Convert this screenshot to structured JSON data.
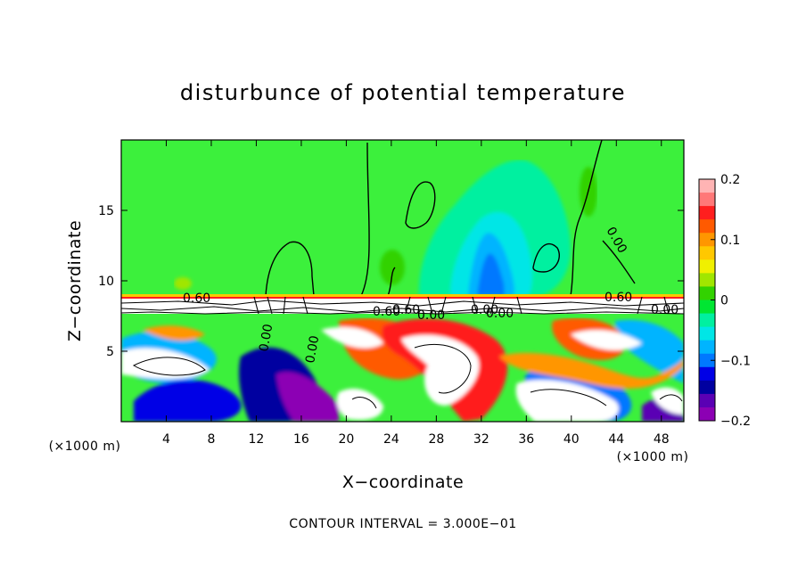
{
  "chart_data": {
    "type": "heatmap",
    "title": "disturbunce of potential temperature",
    "xlabel": "X−coordinate",
    "ylabel": "Z−coordinate",
    "x_unit": "(×1000 m)",
    "z_unit": "(×1000 m)",
    "xlim": [
      0,
      50
    ],
    "ylim": [
      0,
      20
    ],
    "x_ticks": [
      4,
      8,
      12,
      16,
      20,
      24,
      28,
      32,
      36,
      40,
      44,
      48
    ],
    "y_ticks": [
      5,
      10,
      15
    ],
    "contour_interval": "CONTOUR INTERVAL = 3.000E−01",
    "contour_labels": [
      "0.60",
      "0.00",
      "0.00",
      "0.60",
      "0.60",
      "0.00",
      "0.00",
      "0.00",
      "0.60",
      "0.00",
      "0.00"
    ],
    "colorbar": {
      "min": -0.2,
      "max": 0.2,
      "ticks": [
        {
          "value": 0.2,
          "label": "0.2"
        },
        {
          "value": 0.1,
          "label": "0.1"
        },
        {
          "value": 0.0,
          "label": "0"
        },
        {
          "value": -0.1,
          "label": "−0.1"
        },
        {
          "value": -0.2,
          "label": "−0.2"
        }
      ],
      "colors_top_to_bottom": [
        "#ffb4b4",
        "#ff7878",
        "#ff1e1e",
        "#ff5a00",
        "#ff9600",
        "#ffc800",
        "#f0f000",
        "#a0e600",
        "#32d200",
        "#00e632",
        "#00f0a0",
        "#00e6e6",
        "#00b4ff",
        "#0078ff",
        "#0000e6",
        "#0000a0",
        "#5a00b4",
        "#8c00b4"
      ]
    },
    "background_field_color": "#3cf03c"
  }
}
